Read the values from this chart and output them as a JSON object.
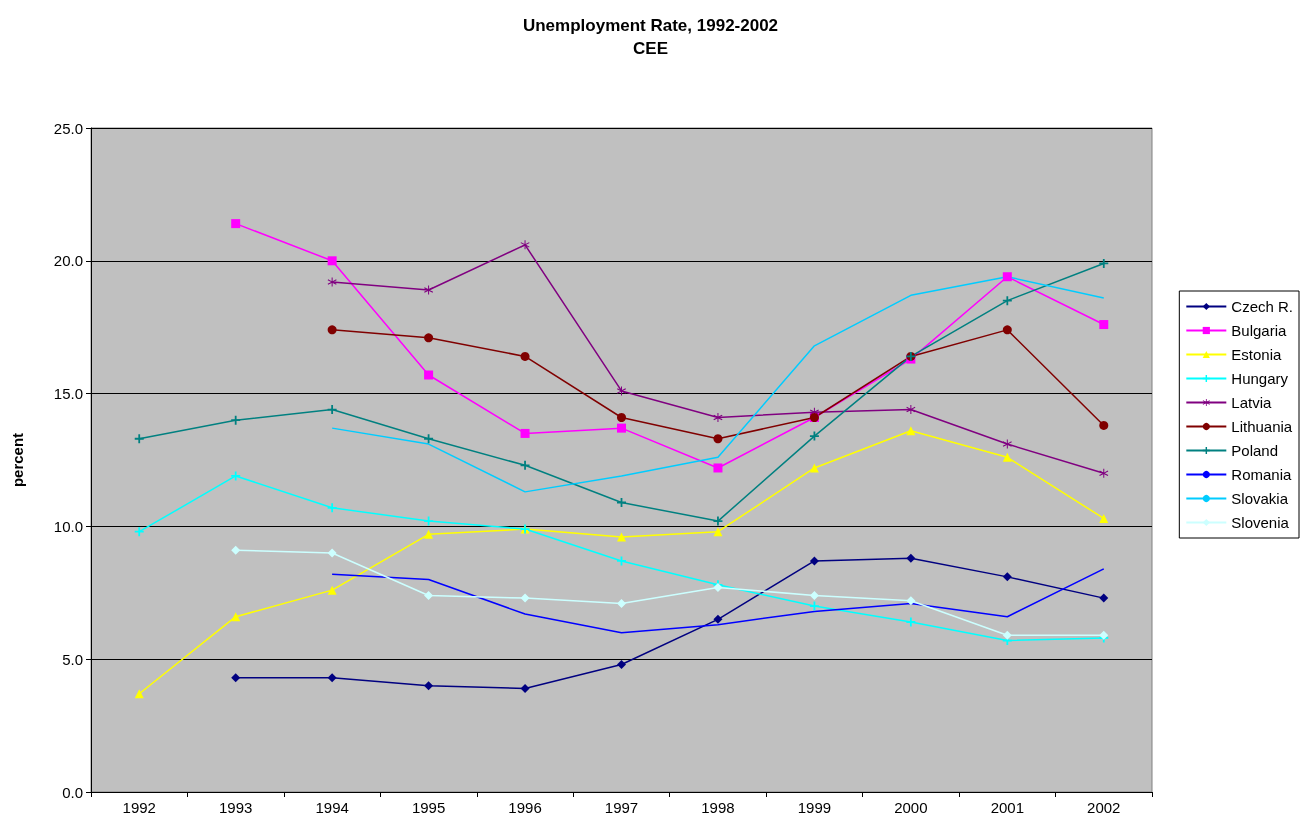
{
  "chart_data": {
    "type": "line",
    "title": "Unemployment Rate, 1992-2002",
    "subtitle": "CEE",
    "ylabel": "percent",
    "categories": [
      "1992",
      "1993",
      "1994",
      "1995",
      "1996",
      "1997",
      "1998",
      "1999",
      "2000",
      "2001",
      "2002"
    ],
    "ylim": [
      0,
      25
    ],
    "yticks": [
      {
        "value": 0,
        "label": "0.0"
      },
      {
        "value": 5,
        "label": "5.0"
      },
      {
        "value": 10,
        "label": "10.0"
      },
      {
        "value": 15,
        "label": "15.0"
      },
      {
        "value": 20,
        "label": "20.0"
      },
      {
        "value": 25,
        "label": "25.0"
      }
    ],
    "grid": "y",
    "legend": "right",
    "line_style": "solid",
    "series": [
      {
        "name": "Czech R.",
        "color": "#000080",
        "marker": "diamond",
        "values": [
          null,
          4.3,
          4.3,
          4.0,
          3.9,
          4.8,
          6.5,
          8.7,
          8.8,
          8.1,
          7.3
        ]
      },
      {
        "name": "Bulgaria",
        "color": "#ff00ff",
        "marker": "square",
        "values": [
          null,
          21.4,
          20.0,
          15.7,
          13.5,
          13.7,
          12.2,
          14.1,
          16.3,
          19.4,
          17.6
        ]
      },
      {
        "name": "Estonia",
        "color": "#ffff00",
        "marker": "triangle",
        "values": [
          3.7,
          6.6,
          7.6,
          9.7,
          9.9,
          9.6,
          9.8,
          12.2,
          13.6,
          12.6,
          10.3
        ]
      },
      {
        "name": "Hungary",
        "color": "#00ffff",
        "marker": "cross",
        "values": [
          9.8,
          11.9,
          10.7,
          10.2,
          9.9,
          8.7,
          7.8,
          7.0,
          6.4,
          5.7,
          5.8
        ]
      },
      {
        "name": "Latvia",
        "color": "#800080",
        "marker": "star",
        "values": [
          null,
          null,
          19.2,
          18.9,
          20.6,
          15.1,
          14.1,
          14.3,
          14.4,
          13.1,
          12.0
        ]
      },
      {
        "name": "Lithuania",
        "color": "#800000",
        "marker": "circle",
        "values": [
          null,
          null,
          17.4,
          17.1,
          16.4,
          14.1,
          13.3,
          14.1,
          16.4,
          17.4,
          13.8
        ]
      },
      {
        "name": "Poland",
        "color": "#008080",
        "marker": "cross",
        "values": [
          13.3,
          14.0,
          14.4,
          13.3,
          12.3,
          10.9,
          10.2,
          13.4,
          16.4,
          18.5,
          19.9
        ]
      },
      {
        "name": "Romania",
        "color": "#0000ff",
        "marker": "none",
        "values": [
          null,
          null,
          8.2,
          8.0,
          6.7,
          6.0,
          6.3,
          6.8,
          7.1,
          6.6,
          8.4
        ]
      },
      {
        "name": "Slovakia",
        "color": "#00ccff",
        "marker": "none",
        "values": [
          null,
          null,
          13.7,
          13.1,
          11.3,
          11.9,
          12.6,
          16.8,
          18.7,
          19.4,
          18.6
        ]
      },
      {
        "name": "Slovenia",
        "color": "#ccffff",
        "marker": "diamond",
        "values": [
          null,
          9.1,
          9.0,
          7.4,
          7.3,
          7.1,
          7.7,
          7.4,
          7.2,
          5.9,
          5.9
        ]
      }
    ]
  }
}
